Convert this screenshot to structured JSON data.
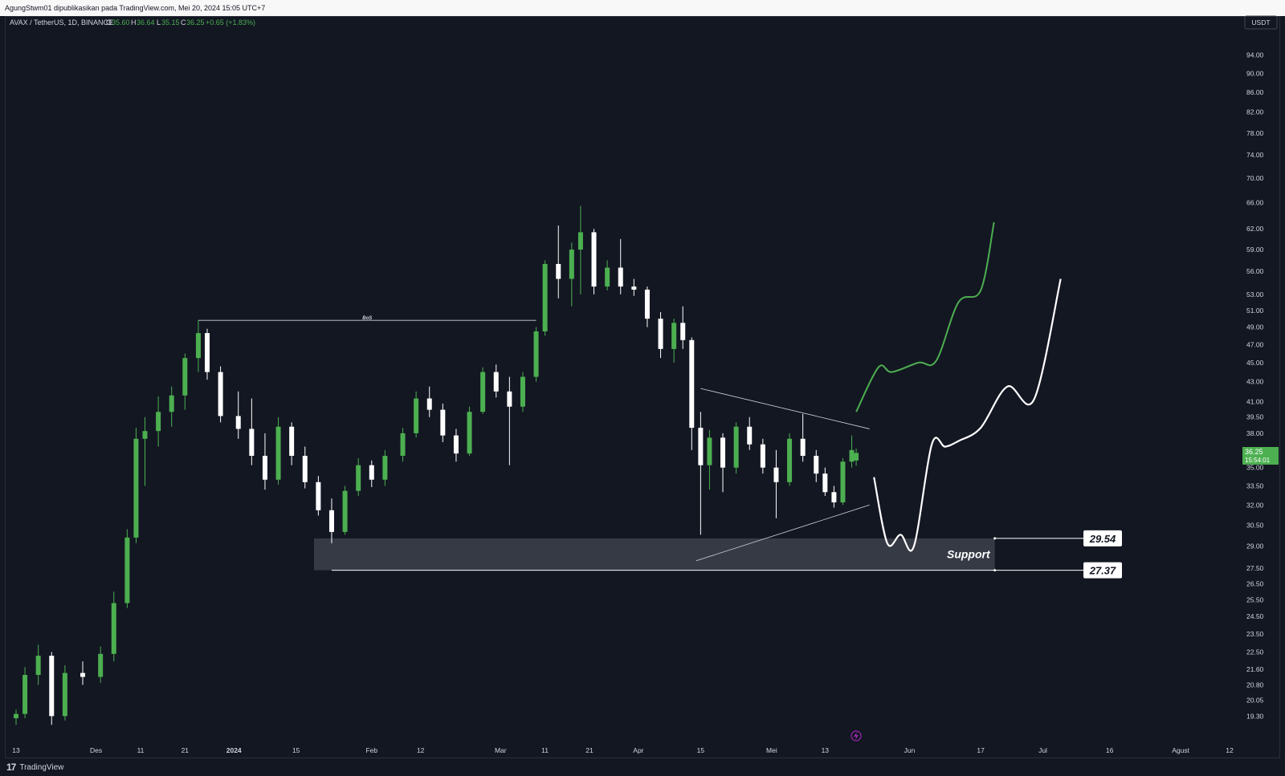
{
  "header": {
    "published_text": "AgungStwm01 dipublikasikan pada TradingView.com, Mei 20, 2024 15:05 UTC+7"
  },
  "legend": {
    "symbol": "AVAX / TetherUS, 1D, BINANCE",
    "o_label": "O",
    "o_value": "35.60",
    "h_label": "H",
    "h_value": "36.64",
    "l_label": "L",
    "l_value": "35.15",
    "c_label": "C",
    "c_value": "36.25",
    "change": "+0.65 (+1.83%)"
  },
  "price_axis": {
    "currency_button": "USDT",
    "ticks": [
      "94.00",
      "90.00",
      "86.00",
      "82.00",
      "78.00",
      "74.00",
      "70.00",
      "66.00",
      "62.00",
      "59.00",
      "56.00",
      "53.00",
      "51.00",
      "49.00",
      "47.00",
      "45.00",
      "43.00",
      "41.00",
      "39.50",
      "38.00",
      "35.00",
      "33.50",
      "32.00",
      "30.50",
      "29.00",
      "27.50",
      "26.50",
      "25.50",
      "24.50",
      "23.50",
      "22.50",
      "21.60",
      "20.80",
      "20.05",
      "19.30"
    ],
    "last_price_label": "36.25",
    "countdown_label": "15:54:01",
    "last_price_color": "#4caf50"
  },
  "time_axis": {
    "ticks": [
      "13",
      "Des",
      "11",
      "21",
      "2024",
      "15",
      "Feb",
      "12",
      "Mar",
      "11",
      "21",
      "Apr",
      "15",
      "Mei",
      "13",
      "Jun",
      "17",
      "Jul",
      "16",
      "Agust",
      "12"
    ]
  },
  "annotations": {
    "bos_label": "BoS",
    "support_label": "Support",
    "support_high_label": "29.54",
    "support_low_label": "27.37"
  },
  "footer": {
    "logo_text": "TradingView"
  },
  "colors": {
    "background": "#131722",
    "up_candle": "#4caf50",
    "down_candle": "#ffffff",
    "support_zone": "#363a45",
    "projection_green": "#4caf50",
    "projection_white": "#ffffff",
    "axis_text": "#d1d4dc"
  },
  "chart_data": {
    "type": "candlestick",
    "symbol": "AVAX / TetherUS",
    "interval": "1D",
    "exchange": "BINANCE",
    "y_scale": "log",
    "ylim": [
      18.8,
      98
    ],
    "x_range": [
      "2023-11-13",
      "2024-08-12"
    ],
    "grid": false,
    "ohlc": [
      {
        "date": "2023-11-13",
        "o": 19.2,
        "h": 19.6,
        "l": 18.9,
        "c": 19.4
      },
      {
        "date": "2023-11-15",
        "o": 19.4,
        "h": 21.7,
        "l": 19.2,
        "c": 21.3
      },
      {
        "date": "2023-11-18",
        "o": 21.3,
        "h": 22.9,
        "l": 20.8,
        "c": 22.3
      },
      {
        "date": "2023-11-21",
        "o": 22.3,
        "h": 22.5,
        "l": 18.9,
        "c": 19.3
      },
      {
        "date": "2023-11-24",
        "o": 19.3,
        "h": 21.8,
        "l": 19.1,
        "c": 21.4
      },
      {
        "date": "2023-11-28",
        "o": 21.4,
        "h": 22.0,
        "l": 20.8,
        "c": 21.2
      },
      {
        "date": "2023-12-02",
        "o": 21.2,
        "h": 22.8,
        "l": 20.9,
        "c": 22.4
      },
      {
        "date": "2023-12-05",
        "o": 22.4,
        "h": 26.0,
        "l": 22.0,
        "c": 25.3
      },
      {
        "date": "2023-12-08",
        "o": 25.3,
        "h": 30.2,
        "l": 25.0,
        "c": 29.6
      },
      {
        "date": "2023-12-10",
        "o": 29.6,
        "h": 38.5,
        "l": 29.2,
        "c": 37.5
      },
      {
        "date": "2023-12-12",
        "o": 37.5,
        "h": 39.5,
        "l": 33.5,
        "c": 38.2
      },
      {
        "date": "2023-12-15",
        "o": 38.2,
        "h": 41.5,
        "l": 36.8,
        "c": 40.0
      },
      {
        "date": "2023-12-18",
        "o": 40.0,
        "h": 42.5,
        "l": 38.6,
        "c": 41.6
      },
      {
        "date": "2023-12-21",
        "o": 41.6,
        "h": 46.0,
        "l": 40.2,
        "c": 45.5
      },
      {
        "date": "2023-12-24",
        "o": 45.5,
        "h": 49.8,
        "l": 44.0,
        "c": 48.3
      },
      {
        "date": "2023-12-26",
        "o": 48.3,
        "h": 48.8,
        "l": 43.2,
        "c": 44.0
      },
      {
        "date": "2023-12-29",
        "o": 44.0,
        "h": 44.6,
        "l": 39.0,
        "c": 39.6
      },
      {
        "date": "2024-01-02",
        "o": 39.6,
        "h": 42.0,
        "l": 37.5,
        "c": 38.4
      },
      {
        "date": "2024-01-05",
        "o": 38.4,
        "h": 41.3,
        "l": 35.2,
        "c": 36.0
      },
      {
        "date": "2024-01-08",
        "o": 36.0,
        "h": 38.0,
        "l": 33.2,
        "c": 34.0
      },
      {
        "date": "2024-01-11",
        "o": 34.0,
        "h": 39.5,
        "l": 33.6,
        "c": 38.6
      },
      {
        "date": "2024-01-14",
        "o": 38.6,
        "h": 39.0,
        "l": 35.2,
        "c": 36.0
      },
      {
        "date": "2024-01-17",
        "o": 36.0,
        "h": 36.8,
        "l": 33.3,
        "c": 33.8
      },
      {
        "date": "2024-01-20",
        "o": 33.8,
        "h": 34.3,
        "l": 31.2,
        "c": 31.6
      },
      {
        "date": "2024-01-23",
        "o": 31.6,
        "h": 32.5,
        "l": 29.2,
        "c": 30.0
      },
      {
        "date": "2024-01-26",
        "o": 30.0,
        "h": 33.5,
        "l": 29.8,
        "c": 33.1
      },
      {
        "date": "2024-01-29",
        "o": 33.1,
        "h": 35.8,
        "l": 32.7,
        "c": 35.2
      },
      {
        "date": "2024-02-01",
        "o": 35.2,
        "h": 35.6,
        "l": 33.4,
        "c": 34.0
      },
      {
        "date": "2024-02-04",
        "o": 34.0,
        "h": 36.5,
        "l": 33.5,
        "c": 36.0
      },
      {
        "date": "2024-02-08",
        "o": 36.0,
        "h": 38.5,
        "l": 35.5,
        "c": 38.0
      },
      {
        "date": "2024-02-11",
        "o": 38.0,
        "h": 42.0,
        "l": 37.6,
        "c": 41.3
      },
      {
        "date": "2024-02-14",
        "o": 41.3,
        "h": 42.5,
        "l": 39.5,
        "c": 40.2
      },
      {
        "date": "2024-02-17",
        "o": 40.2,
        "h": 40.8,
        "l": 37.2,
        "c": 37.8
      },
      {
        "date": "2024-02-20",
        "o": 37.8,
        "h": 38.4,
        "l": 35.5,
        "c": 36.2
      },
      {
        "date": "2024-02-23",
        "o": 36.2,
        "h": 40.5,
        "l": 36.0,
        "c": 40.0
      },
      {
        "date": "2024-02-26",
        "o": 40.0,
        "h": 44.5,
        "l": 39.8,
        "c": 44.0
      },
      {
        "date": "2024-02-29",
        "o": 44.0,
        "h": 44.8,
        "l": 41.4,
        "c": 42.0
      },
      {
        "date": "2024-03-03",
        "o": 42.0,
        "h": 43.5,
        "l": 35.2,
        "c": 40.5
      },
      {
        "date": "2024-03-06",
        "o": 40.5,
        "h": 44.0,
        "l": 40.0,
        "c": 43.5
      },
      {
        "date": "2024-03-09",
        "o": 43.5,
        "h": 49.0,
        "l": 43.0,
        "c": 48.5
      },
      {
        "date": "2024-03-11",
        "o": 48.5,
        "h": 57.5,
        "l": 48.0,
        "c": 57.0
      },
      {
        "date": "2024-03-14",
        "o": 57.0,
        "h": 62.5,
        "l": 52.5,
        "c": 55.0
      },
      {
        "date": "2024-03-17",
        "o": 55.0,
        "h": 60.0,
        "l": 51.5,
        "c": 59.0
      },
      {
        "date": "2024-03-19",
        "o": 59.0,
        "h": 65.5,
        "l": 53.0,
        "c": 61.5
      },
      {
        "date": "2024-03-22",
        "o": 61.5,
        "h": 62.0,
        "l": 53.0,
        "c": 54.0
      },
      {
        "date": "2024-03-25",
        "o": 54.0,
        "h": 57.5,
        "l": 53.5,
        "c": 56.5
      },
      {
        "date": "2024-03-28",
        "o": 56.5,
        "h": 60.5,
        "l": 53.0,
        "c": 54.0
      },
      {
        "date": "2024-03-31",
        "o": 54.0,
        "h": 55.0,
        "l": 52.8,
        "c": 53.6
      },
      {
        "date": "2024-04-03",
        "o": 53.6,
        "h": 54.0,
        "l": 49.0,
        "c": 50.0
      },
      {
        "date": "2024-04-06",
        "o": 50.0,
        "h": 50.8,
        "l": 45.5,
        "c": 46.5
      },
      {
        "date": "2024-04-09",
        "o": 46.5,
        "h": 50.0,
        "l": 45.0,
        "c": 49.5
      },
      {
        "date": "2024-04-11",
        "o": 49.5,
        "h": 51.5,
        "l": 46.5,
        "c": 47.5
      },
      {
        "date": "2024-04-13",
        "o": 47.5,
        "h": 47.8,
        "l": 36.5,
        "c": 38.5
      },
      {
        "date": "2024-04-15",
        "o": 38.5,
        "h": 40.0,
        "l": 29.8,
        "c": 35.2
      },
      {
        "date": "2024-04-17",
        "o": 35.2,
        "h": 38.3,
        "l": 33.2,
        "c": 37.6
      },
      {
        "date": "2024-04-20",
        "o": 37.6,
        "h": 38.0,
        "l": 33.0,
        "c": 35.0
      },
      {
        "date": "2024-04-23",
        "o": 35.0,
        "h": 39.0,
        "l": 34.5,
        "c": 38.6
      },
      {
        "date": "2024-04-26",
        "o": 38.6,
        "h": 39.5,
        "l": 36.5,
        "c": 37.0
      },
      {
        "date": "2024-04-29",
        "o": 37.0,
        "h": 37.5,
        "l": 34.5,
        "c": 35.0
      },
      {
        "date": "2024-05-02",
        "o": 35.0,
        "h": 36.5,
        "l": 31.0,
        "c": 33.8
      },
      {
        "date": "2024-05-05",
        "o": 33.8,
        "h": 38.0,
        "l": 33.5,
        "c": 37.5
      },
      {
        "date": "2024-05-08",
        "o": 37.5,
        "h": 39.8,
        "l": 35.5,
        "c": 36.0
      },
      {
        "date": "2024-05-11",
        "o": 36.0,
        "h": 36.5,
        "l": 33.8,
        "c": 34.5
      },
      {
        "date": "2024-05-13",
        "o": 34.5,
        "h": 35.0,
        "l": 32.7,
        "c": 33.0
      },
      {
        "date": "2024-05-15",
        "o": 33.0,
        "h": 33.5,
        "l": 31.8,
        "c": 32.2
      },
      {
        "date": "2024-05-17",
        "o": 32.2,
        "h": 35.8,
        "l": 32.0,
        "c": 35.5
      },
      {
        "date": "2024-05-19",
        "o": 35.5,
        "h": 37.8,
        "l": 35.0,
        "c": 36.5
      },
      {
        "date": "2024-05-20",
        "o": 35.6,
        "h": 36.64,
        "l": 35.15,
        "c": 36.25
      }
    ],
    "support_zone": {
      "high": 29.54,
      "low": 27.37,
      "label": "Support"
    },
    "bos_level": 49.8,
    "triangle": {
      "upper": [
        {
          "date": "2024-04-15",
          "price": 42.3
        },
        {
          "date": "2024-05-23",
          "price": 38.4
        }
      ],
      "lower": [
        {
          "date": "2024-04-14",
          "price": 28.0
        },
        {
          "date": "2024-05-23",
          "price": 32.0
        }
      ]
    },
    "projection_green": [
      {
        "date": "2024-05-20",
        "price": 40.0
      },
      {
        "date": "2024-05-25",
        "price": 44.5
      },
      {
        "date": "2024-05-28",
        "price": 44.0
      },
      {
        "date": "2024-06-03",
        "price": 45.0
      },
      {
        "date": "2024-06-07",
        "price": 45.2
      },
      {
        "date": "2024-06-12",
        "price": 52.0
      },
      {
        "date": "2024-06-17",
        "price": 53.5
      },
      {
        "date": "2024-06-20",
        "price": 63.0
      }
    ],
    "projection_white": [
      {
        "date": "2024-05-24",
        "price": 34.2
      },
      {
        "date": "2024-05-27",
        "price": 29.2
      },
      {
        "date": "2024-05-30",
        "price": 29.8
      },
      {
        "date": "2024-06-02",
        "price": 29.0
      },
      {
        "date": "2024-06-06",
        "price": 37.0
      },
      {
        "date": "2024-06-09",
        "price": 36.8
      },
      {
        "date": "2024-06-12",
        "price": 37.3
      },
      {
        "date": "2024-06-17",
        "price": 38.5
      },
      {
        "date": "2024-06-23",
        "price": 42.5
      },
      {
        "date": "2024-06-29",
        "price": 41.2
      },
      {
        "date": "2024-07-05",
        "price": 55.0
      }
    ]
  }
}
